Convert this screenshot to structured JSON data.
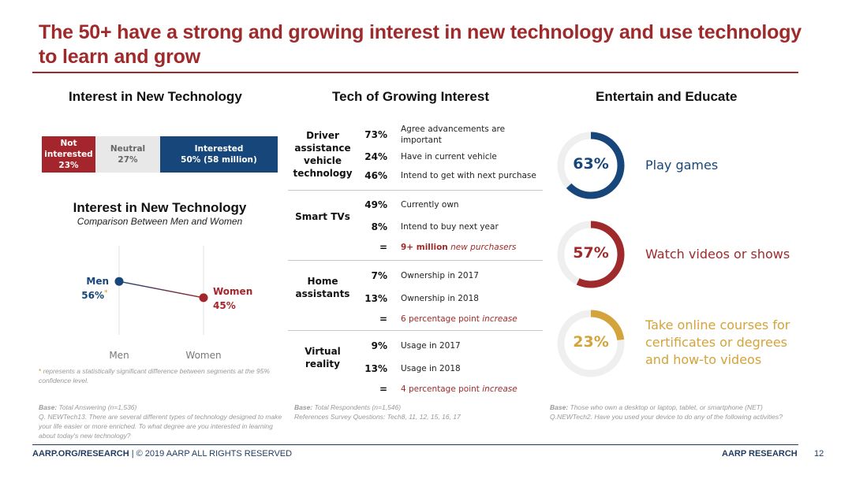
{
  "title": "The 50+ have a strong and growing interest in new technology and use technology to learn and grow",
  "colors": {
    "red": "#9e2a2b",
    "blue": "#17477a",
    "gold": "#d4a33a",
    "gray": "#e8e8e8"
  },
  "left": {
    "heading": "Interest in New Technology",
    "stacked_bar": {
      "segments": [
        {
          "label": "Not interested",
          "value": "23%",
          "pct": 23
        },
        {
          "label": "Neutral",
          "value": "27%",
          "pct": 27
        },
        {
          "label": "Interested",
          "value": "50% (58 million)",
          "pct": 50
        }
      ]
    },
    "comparison": {
      "title": "Interest in New Technology",
      "subtitle": "Comparison Between Men and Women",
      "men_label": "Men",
      "men_value": "56%",
      "men_marker": "*",
      "women_label": "Women",
      "women_value": "45%",
      "x_labels": [
        "Men",
        "Women"
      ]
    },
    "footnote_star": "*",
    "footnote": " represents a statistically significant difference between segments at the 95% confidence level.",
    "base_label": "Base:",
    "base_text": " Total Answering (n=1,536)",
    "question": "Q. NEWTech13. There are several different types of technology designed to make your life easier or more enriched. To what degree are you interested in learning about today's new technology?"
  },
  "chart_data": {
    "type": "line",
    "title": "Interest in New Technology",
    "subtitle": "Comparison Between Men and Women",
    "categories": [
      "Men",
      "Women"
    ],
    "values": [
      56,
      45
    ],
    "unit": "%",
    "xlabel": "",
    "ylabel": "",
    "annotations": [
      "* represents a statistically significant difference between segments at the 95% confidence level."
    ]
  },
  "middle": {
    "heading": "Tech of Growing Interest",
    "groups": [
      {
        "category": "Driver assistance vehicle technology",
        "rows": [
          {
            "pct": "73%",
            "text": "Agree advancements are important"
          },
          {
            "pct": "24%",
            "text": "Have in current vehicle"
          },
          {
            "pct": "46%",
            "text": "Intend to get with next purchase"
          }
        ]
      },
      {
        "category": "Smart TVs",
        "rows": [
          {
            "pct": "49%",
            "text": "Currently own"
          },
          {
            "pct": "8%",
            "text": "Intend to buy next year"
          },
          {
            "pct": "=",
            "bold": "9+ million",
            "italic": " new purchasers"
          }
        ]
      },
      {
        "category": "Home assistants",
        "rows": [
          {
            "pct": "7%",
            "text": "Ownership in 2017"
          },
          {
            "pct": "13%",
            "text": "Ownership in 2018"
          },
          {
            "pct": "=",
            "plain": "6 percentage point ",
            "italic": "increase"
          }
        ]
      },
      {
        "category": "Virtual reality",
        "rows": [
          {
            "pct": "9%",
            "text": "Usage in 2017"
          },
          {
            "pct": "13%",
            "text": "Usage in 2018"
          },
          {
            "pct": "=",
            "plain": "4 percentage point ",
            "italic": "increase"
          }
        ]
      }
    ],
    "base_label": "Base:",
    "base_text": " Total Respondents (n=1,546)",
    "references": "References Survey Questions: Tech8, 11, 12, 15, 16, 17"
  },
  "right": {
    "heading": "Entertain and Educate",
    "donuts": [
      {
        "value": "63%",
        "pct": 63,
        "label": "Play games",
        "color": "#17477a"
      },
      {
        "value": "57%",
        "pct": 57,
        "label": "Watch videos or shows",
        "color": "#9e2a2b"
      },
      {
        "value": "23%",
        "pct": 23,
        "label": "Take online courses for certificates or degrees and how-to videos",
        "color": "#d4a33a"
      }
    ],
    "base_label": "Base:",
    "base_text": " Those who own a desktop or laptop, tablet, or smartphone (NET)",
    "question": "Q.NEWTech2. Have you used your device to do any of the following activities?"
  },
  "footer": {
    "site": "AARP.ORG/RESEARCH",
    "copyright": " | © 2019 AARP ALL RIGHTS RESERVED",
    "brand": "AARP RESEARCH",
    "page": "12"
  }
}
